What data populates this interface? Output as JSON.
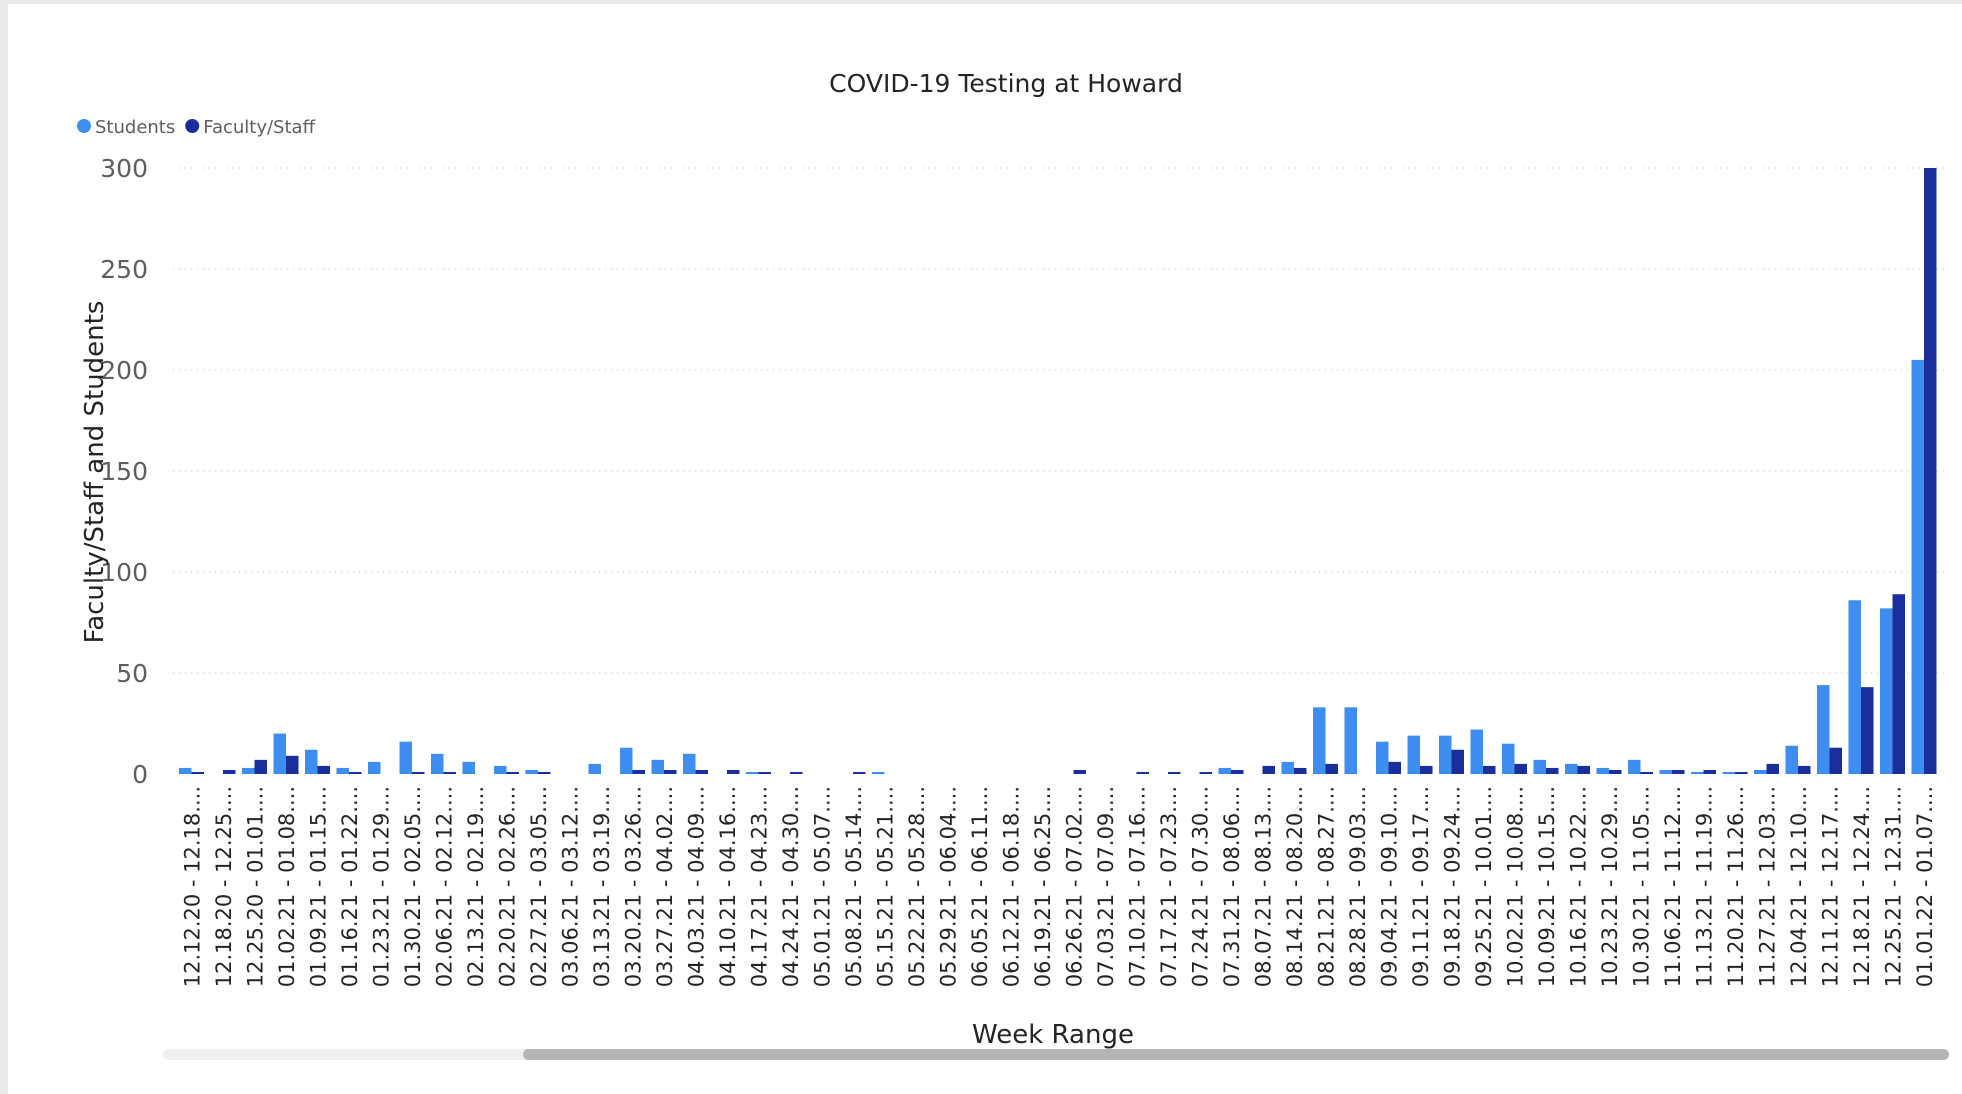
{
  "chart_data": {
    "type": "bar",
    "title": "COVID-19 Testing at Howard",
    "xlabel": "Week Range",
    "ylabel": "Faculty/Staff and Students",
    "ylim": [
      0,
      300
    ],
    "yticks": [
      0,
      50,
      100,
      150,
      200,
      250,
      300
    ],
    "grid": true,
    "legend_position": "top-left",
    "categories": [
      "12.12.20 - 12.18....",
      "12.18.20 - 12.25....",
      "12.25.20 - 01.01....",
      "01.02.21 - 01.08....",
      "01.09.21 - 01.15....",
      "01.16.21 - 01.22....",
      "01.23.21 - 01.29....",
      "01.30.21 - 02.05....",
      "02.06.21 - 02.12....",
      "02.13.21 - 02.19....",
      "02.20.21 - 02.26....",
      "02.27.21 - 03.05....",
      "03.06.21 - 03.12....",
      "03.13.21 - 03.19....",
      "03.20.21 - 03.26....",
      "03.27.21 - 04.02....",
      "04.03.21 - 04.09....",
      "04.10.21 - 04.16....",
      "04.17.21 - 04.23....",
      "04.24.21 - 04.30....",
      "05.01.21 - 05.07....",
      "05.08.21 - 05.14....",
      "05.15.21 - 05.21....",
      "05.22.21 - 05.28....",
      "05.29.21 - 06.04....",
      "06.05.21 - 06.11....",
      "06.12.21 - 06.18....",
      "06.19.21 - 06.25....",
      "06.26.21 - 07.02....",
      "07.03.21 - 07.09....",
      "07.10.21 - 07.16....",
      "07.17.21 - 07.23....",
      "07.24.21 - 07.30....",
      "07.31.21 - 08.06....",
      "08.07.21 - 08.13....",
      "08.14.21 - 08.20....",
      "08.21.21 - 08.27....",
      "08.28.21 - 09.03....",
      "09.04.21 - 09.10....",
      "09.11.21 - 09.17....",
      "09.18.21 - 09.24....",
      "09.25.21 - 10.01....",
      "10.02.21 - 10.08....",
      "10.09.21 - 10.15....",
      "10.16.21 - 10.22....",
      "10.23.21 - 10.29....",
      "10.30.21 - 11.05....",
      "11.06.21 - 11.12....",
      "11.13.21 - 11.19....",
      "11.20.21 - 11.26....",
      "11.27.21 - 12.03....",
      "12.04.21 - 12.10....",
      "12.11.21 - 12.17....",
      "12.18.21 - 12.24....",
      "12.25.21 - 12.31....",
      "01.01.22 - 01.07...."
    ],
    "series": [
      {
        "name": "Students",
        "color": "#3d8ef0",
        "values": [
          3,
          0,
          3,
          20,
          12,
          3,
          6,
          16,
          10,
          6,
          4,
          2,
          0,
          5,
          13,
          7,
          10,
          0,
          1,
          0,
          0,
          0,
          1,
          0,
          0,
          0,
          0,
          0,
          0,
          0,
          0,
          0,
          0,
          3,
          0,
          6,
          33,
          33,
          16,
          19,
          19,
          22,
          15,
          7,
          5,
          3,
          7,
          2,
          1,
          1,
          2,
          14,
          44,
          86,
          82,
          205
        ]
      },
      {
        "name": "Faculty/Staff",
        "color": "#1a2f9b",
        "values": [
          1,
          2,
          7,
          9,
          4,
          1,
          0,
          1,
          1,
          0,
          1,
          1,
          0,
          0,
          2,
          2,
          2,
          2,
          1,
          1,
          0,
          1,
          0,
          0,
          0,
          0,
          0,
          0,
          2,
          0,
          1,
          1,
          1,
          2,
          4,
          3,
          5,
          0,
          6,
          4,
          12,
          4,
          5,
          3,
          4,
          2,
          1,
          2,
          2,
          1,
          5,
          4,
          13,
          43,
          89,
          300
        ]
      }
    ]
  },
  "scrollbar": {
    "label": "horizontal-scrollbar"
  }
}
